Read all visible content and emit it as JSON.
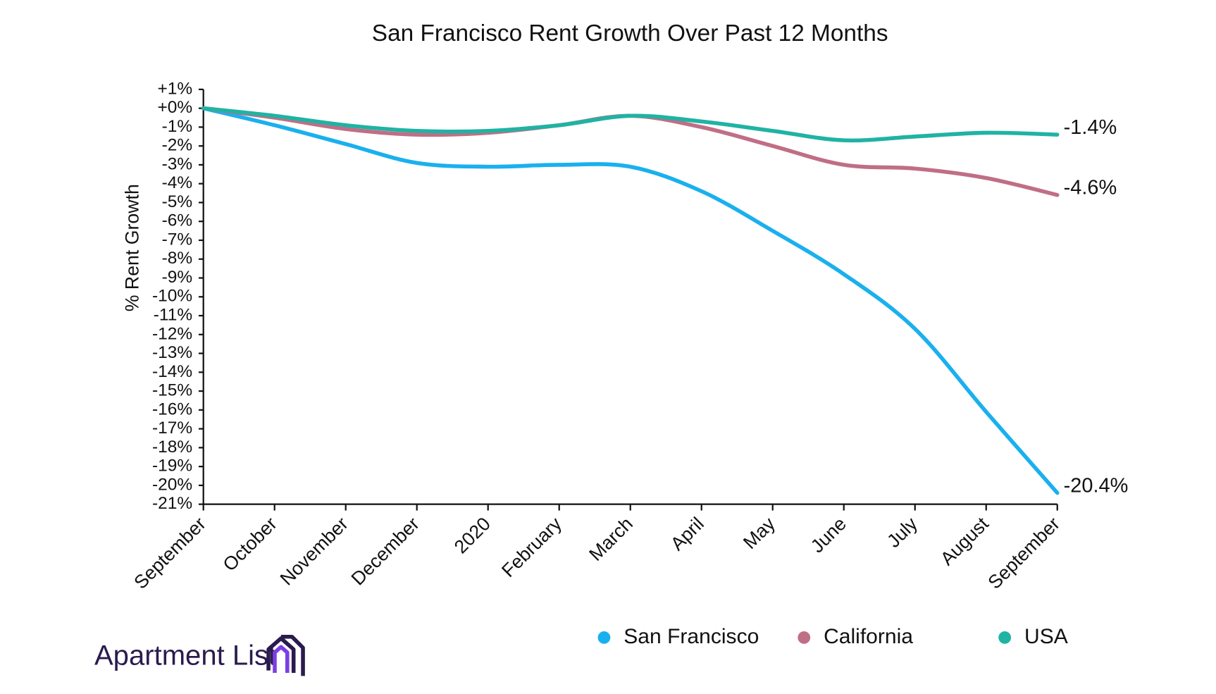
{
  "chart_data": {
    "type": "line",
    "title": "San Francisco Rent Growth Over Past 12 Months",
    "y_label": "% Rent Growth",
    "categories": [
      "September",
      "October",
      "November",
      "December",
      "2020",
      "February",
      "March",
      "April",
      "May",
      "June",
      "July",
      "August",
      "September"
    ],
    "series": [
      {
        "name": "San Francisco",
        "color": "#1ab0ee",
        "values": [
          0,
          -0.9,
          -1.9,
          -2.9,
          -3.1,
          -3.0,
          -3.1,
          -4.4,
          -6.5,
          -8.8,
          -11.7,
          -16.1,
          -20.4
        ],
        "value_labels": [
          null,
          null,
          null,
          null,
          null,
          null,
          null,
          null,
          null,
          null,
          null,
          null,
          "-20.4%"
        ]
      },
      {
        "name": "California",
        "color": "#c06e86",
        "values": [
          0,
          -0.5,
          -1.1,
          -1.4,
          -1.3,
          -0.9,
          -0.4,
          -1.0,
          -2.0,
          -3.0,
          -3.2,
          -3.7,
          -4.6
        ],
        "value_labels": [
          null,
          null,
          null,
          null,
          null,
          null,
          null,
          null,
          null,
          null,
          null,
          null,
          "-4.6%"
        ]
      },
      {
        "name": "USA",
        "color": "#1fb3a3",
        "values": [
          0,
          -0.4,
          -0.9,
          -1.2,
          -1.2,
          -0.9,
          -0.4,
          -0.7,
          -1.2,
          -1.7,
          -1.5,
          -1.3,
          -1.4
        ],
        "value_labels": [
          null,
          null,
          null,
          null,
          null,
          null,
          null,
          null,
          null,
          null,
          null,
          null,
          "-1.4%"
        ]
      }
    ],
    "ylim": [
      -21,
      1
    ],
    "yticks": [
      {
        "value": 1,
        "label": "+1%"
      },
      {
        "value": 0,
        "label": "+0%"
      },
      {
        "value": -1,
        "label": "-1%"
      },
      {
        "value": -2,
        "label": "-2%"
      },
      {
        "value": -3,
        "label": "-3%"
      },
      {
        "value": -4,
        "label": "-4%"
      },
      {
        "value": -5,
        "label": "-5%"
      },
      {
        "value": -6,
        "label": "-6%"
      },
      {
        "value": -7,
        "label": "-7%"
      },
      {
        "value": -8,
        "label": "-8%"
      },
      {
        "value": -9,
        "label": "-9%"
      },
      {
        "value": -10,
        "label": "-10%"
      },
      {
        "value": -11,
        "label": "-11%"
      },
      {
        "value": -12,
        "label": "-12%"
      },
      {
        "value": -13,
        "label": "-13%"
      },
      {
        "value": -14,
        "label": "-14%"
      },
      {
        "value": -15,
        "label": "-15%"
      },
      {
        "value": -16,
        "label": "-16%"
      },
      {
        "value": -17,
        "label": "-17%"
      },
      {
        "value": -18,
        "label": "-18%"
      },
      {
        "value": -19,
        "label": "-19%"
      },
      {
        "value": -20,
        "label": "-20%"
      },
      {
        "value": -21,
        "label": "-21%"
      }
    ],
    "grid": false,
    "legend": "bottom-right",
    "logo": "Apartment List"
  }
}
